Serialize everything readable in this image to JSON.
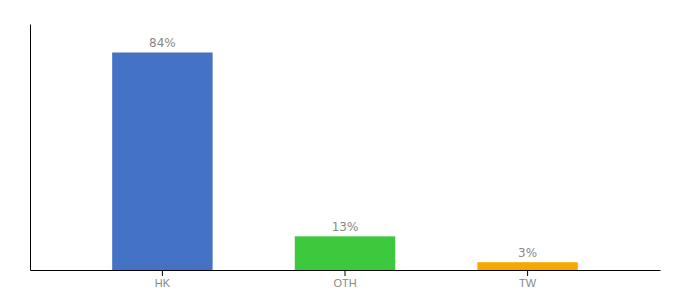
{
  "chart_data": {
    "type": "bar",
    "categories": [
      "HK",
      "OTH",
      "TW"
    ],
    "values": [
      84,
      13,
      3
    ],
    "value_labels": [
      "84%",
      "13%",
      "3%"
    ],
    "colors": [
      "#4472c4",
      "#3dc93d",
      "#f5a800"
    ],
    "ylim": [
      0,
      95
    ],
    "grid": false,
    "data_labels": true,
    "tick_labels": "x"
  }
}
